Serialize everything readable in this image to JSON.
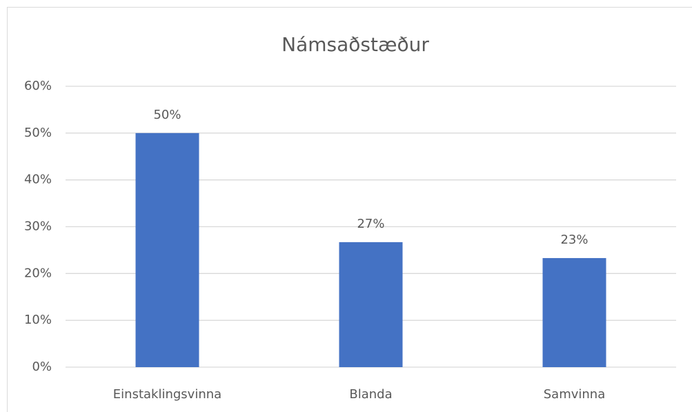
{
  "chart_data": {
    "type": "bar",
    "title": "Námsaðstæður",
    "categories": [
      "Einstaklingsvinna",
      "Blanda",
      "Samvinna"
    ],
    "values": [
      50,
      26.7,
      23.3
    ],
    "value_labels": [
      "50%",
      "27%",
      "23%"
    ],
    "color": "#4472c4",
    "ylim": [
      0,
      60
    ],
    "yticks": [
      {
        "value": 0,
        "label": "0%"
      },
      {
        "value": 10,
        "label": "10%"
      },
      {
        "value": 20,
        "label": "20%"
      },
      {
        "value": 30,
        "label": "30%"
      },
      {
        "value": 40,
        "label": "40%"
      },
      {
        "value": 50,
        "label": "50%"
      },
      {
        "value": 60,
        "label": "60%"
      }
    ],
    "grid": true
  }
}
